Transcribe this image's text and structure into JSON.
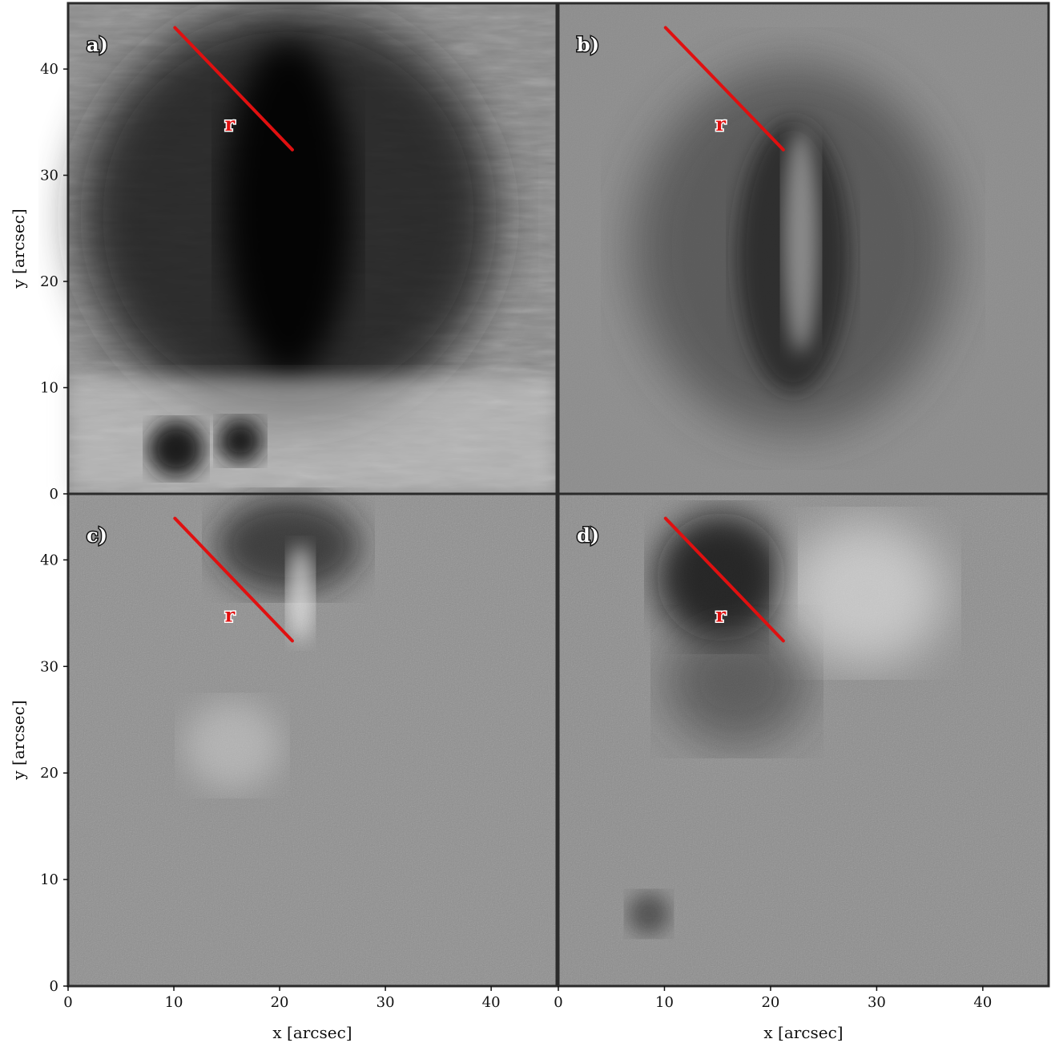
{
  "figure": {
    "axes": {
      "xlabel": "x [arcsec]",
      "ylabel": "y [arcsec]",
      "xlim": [
        0,
        46.2
      ],
      "ylim": [
        0,
        46.2
      ],
      "xticks": [
        0,
        10,
        20,
        30,
        40
      ],
      "yticks": [
        0,
        10,
        20,
        30,
        40
      ]
    },
    "panels": [
      {
        "label": "a)",
        "shade": "dark-intensity"
      },
      {
        "label": "b)",
        "shade": "gray-contrast"
      },
      {
        "label": "c)",
        "shade": "gray-noise"
      },
      {
        "label": "d)",
        "shade": "gray-noise"
      }
    ],
    "cut": {
      "label": "r",
      "start": [
        10.1,
        43.9
      ],
      "end": [
        21.2,
        32.4
      ],
      "color": "#e01010"
    }
  }
}
